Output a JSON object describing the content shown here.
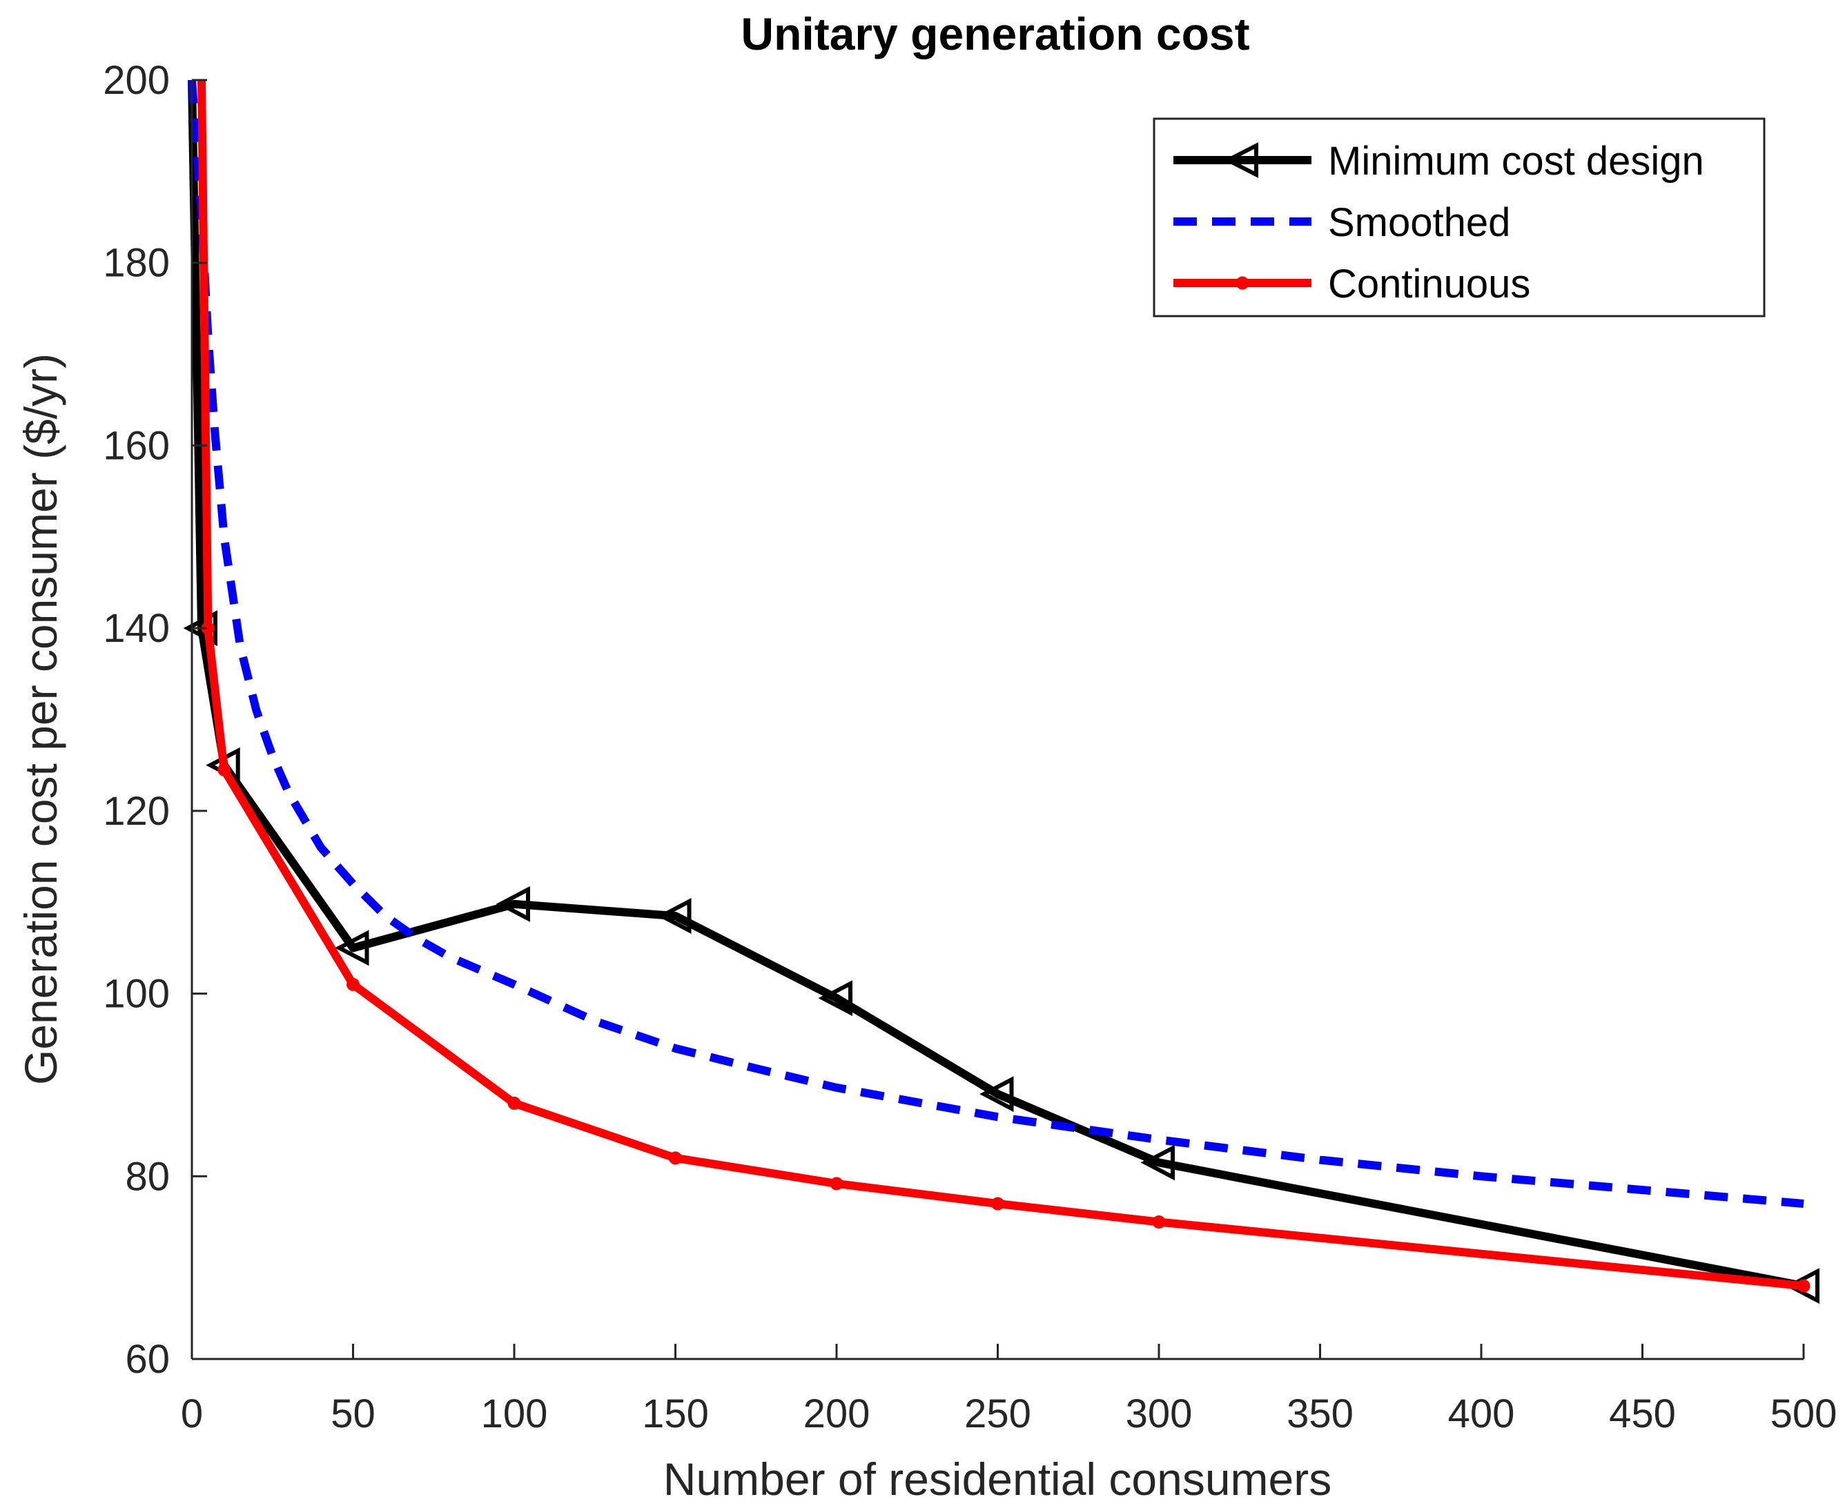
{
  "chart_data": {
    "type": "line",
    "title": "Unitary generation cost",
    "xlabel": "Number of residential consumers",
    "ylabel": "Generation cost per consumer ($/yr)",
    "xlim": [
      0,
      500
    ],
    "ylim": [
      60,
      200
    ],
    "xticks": [
      0,
      50,
      100,
      150,
      200,
      250,
      300,
      350,
      400,
      450,
      500
    ],
    "yticks": [
      60,
      80,
      100,
      120,
      140,
      160,
      180,
      200
    ],
    "grid": false,
    "legend_position": "top-right",
    "series": [
      {
        "name": "Minimum cost design",
        "style": "solid",
        "marker": "triangle-left",
        "color": "#000000",
        "x": [
          0,
          3,
          10,
          50,
          100,
          150,
          200,
          250,
          300,
          500
        ],
        "y": [
          200,
          140,
          125,
          105,
          109.8,
          108.5,
          99.5,
          89,
          81.5,
          68
        ]
      },
      {
        "name": "Smoothed",
        "style": "dashed",
        "marker": "none",
        "color": "#0000ff",
        "x": [
          0,
          3,
          5,
          7,
          10,
          15,
          20,
          25,
          30,
          40,
          50,
          60,
          70,
          80,
          100,
          125,
          150,
          175,
          200,
          250,
          300,
          350,
          400,
          450,
          500
        ],
        "y": [
          200,
          185,
          172,
          162,
          150,
          138,
          131,
          126,
          122,
          116,
          112,
          108.5,
          106,
          104,
          101,
          97,
          94,
          91.8,
          89.7,
          86.5,
          84,
          81.8,
          80,
          78.5,
          77
        ]
      },
      {
        "name": "Continuous",
        "style": "solid",
        "marker": "dot",
        "color": "#ff0000",
        "x": [
          3,
          5,
          10,
          50,
          100,
          150,
          200,
          250,
          300,
          500
        ],
        "y": [
          200,
          140,
          124.5,
          101,
          88,
          82,
          79.2,
          77,
          75,
          68
        ]
      }
    ]
  }
}
